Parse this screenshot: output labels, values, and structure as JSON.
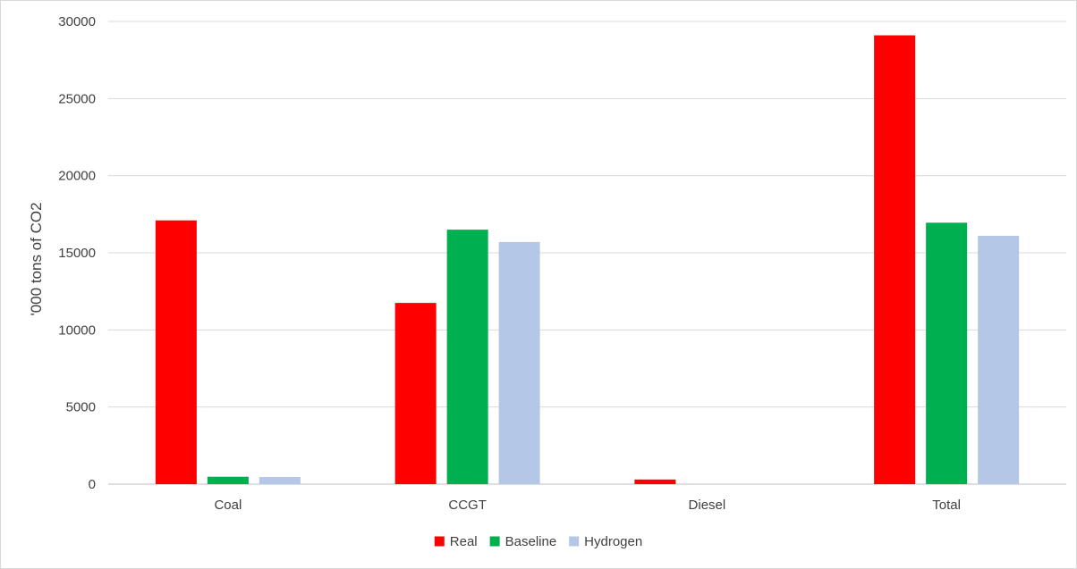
{
  "chart_data": {
    "type": "bar",
    "categories": [
      "Coal",
      "CCGT",
      "Diesel",
      "Total"
    ],
    "series": [
      {
        "name": "Real",
        "color": "#ff0000",
        "values": [
          17100,
          11750,
          300,
          29100
        ]
      },
      {
        "name": "Baseline",
        "color": "#00b050",
        "values": [
          480,
          16500,
          0,
          16950
        ]
      },
      {
        "name": "Hydrogen",
        "color": "#b4c7e7",
        "values": [
          460,
          15700,
          0,
          16100
        ]
      }
    ],
    "title": "",
    "xlabel": "",
    "ylabel": "'000 tons of CO2",
    "ylim": [
      0,
      30000
    ],
    "yticks": [
      0,
      5000,
      10000,
      15000,
      20000,
      25000,
      30000
    ],
    "grid": true,
    "legend_position": "bottom"
  }
}
